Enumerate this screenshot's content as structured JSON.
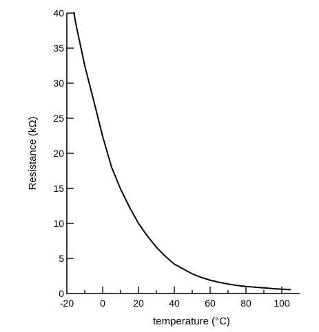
{
  "chart_data": {
    "type": "line",
    "title": "",
    "xlabel": "temperature (°C)",
    "ylabel": "Resistance (kΩ)",
    "xlim": [
      -20,
      110
    ],
    "ylim": [
      0,
      40
    ],
    "x_ticks": [
      -20,
      0,
      20,
      40,
      60,
      80,
      100
    ],
    "x_minor_ticks": [
      -10,
      10,
      30,
      50,
      70,
      90
    ],
    "y_ticks": [
      0,
      5,
      10,
      15,
      20,
      25,
      30,
      35,
      40
    ],
    "grid": false,
    "legend": "none",
    "series": [
      {
        "x": [
          -16,
          -15,
          -10,
          -5,
          0,
          5,
          10,
          15,
          20,
          25,
          30,
          35,
          40,
          45,
          50,
          55,
          60,
          65,
          70,
          75,
          80,
          85,
          90,
          95,
          100,
          105
        ],
        "values": [
          40,
          38.5,
          32.5,
          27.5,
          22.4,
          18,
          14.9,
          12.3,
          10.0,
          8.2,
          6.6,
          5.3,
          4.2,
          3.5,
          2.8,
          2.3,
          1.9,
          1.6,
          1.35,
          1.15,
          1.0,
          0.9,
          0.8,
          0.7,
          0.62,
          0.55
        ]
      }
    ]
  }
}
